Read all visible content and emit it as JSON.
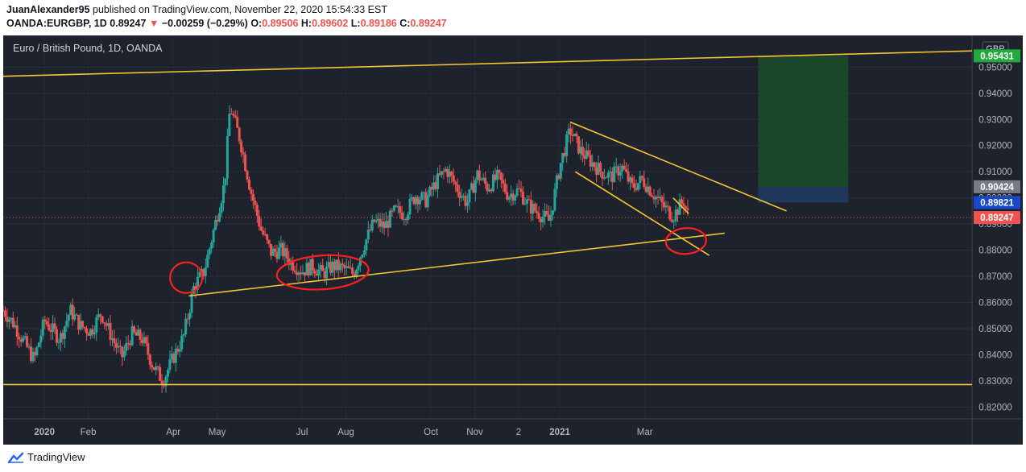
{
  "header": {
    "author": "JuanAlexander95",
    "published_text": "published on TradingView.com, November 22, 2020 15:54:33 EST",
    "symbol": "OANDA:EURGBP, 1D",
    "last_price": "0.89247",
    "change_arrow": "▼",
    "change": "−0.00259 (−0.29%)",
    "o_label": "O:",
    "o_value": "0.89506",
    "h_label": "H:",
    "h_value": "0.89602",
    "l_label": "L:",
    "l_value": "0.89186",
    "c_label": "C:",
    "c_value": "0.89247"
  },
  "footer": {
    "brand": "TradingView"
  },
  "colors": {
    "background": "#1e222d",
    "up": "#26a69a",
    "down": "#ef5350",
    "trendline": "#f7c531",
    "annotation": "#ff1f1f",
    "target_zone": "#1b4a2a",
    "stop_zone": "#1e3a5f"
  },
  "chart_data": {
    "type": "candlestick",
    "title": "Euro / British Pound, 1D, OANDA",
    "currency": "GBP",
    "ylim": [
      0.8155,
      0.9615
    ],
    "y_ticks": [
      "0.82000",
      "0.83000",
      "0.84000",
      "0.85000",
      "0.86000",
      "0.87000",
      "0.88000",
      "0.89000",
      "0.90000",
      "0.91000",
      "0.92000",
      "0.93000",
      "0.94000",
      "0.95000"
    ],
    "x_tick_labels": [
      "2020",
      "Feb",
      "Apr",
      "May",
      "Jul",
      "Aug",
      "Oct",
      "Nov",
      "2",
      "2021",
      "Mar"
    ],
    "price_path": [
      [
        2019.92,
        0.857
      ],
      [
        2019.94,
        0.852
      ],
      [
        2019.96,
        0.845
      ],
      [
        2019.98,
        0.838
      ],
      [
        2020.0,
        0.853
      ],
      [
        2020.03,
        0.846
      ],
      [
        2020.05,
        0.857
      ],
      [
        2020.07,
        0.851
      ],
      [
        2020.09,
        0.849
      ],
      [
        2020.11,
        0.856
      ],
      [
        2020.13,
        0.847
      ],
      [
        2020.15,
        0.839
      ],
      [
        2020.17,
        0.848
      ],
      [
        2020.19,
        0.846
      ],
      [
        2020.21,
        0.836
      ],
      [
        2020.23,
        0.83
      ],
      [
        2020.25,
        0.839
      ],
      [
        2020.27,
        0.847
      ],
      [
        2020.29,
        0.866
      ],
      [
        2020.31,
        0.872
      ],
      [
        2020.33,
        0.889
      ],
      [
        2020.35,
        0.906
      ],
      [
        2020.36,
        0.935
      ],
      [
        2020.38,
        0.922
      ],
      [
        2020.4,
        0.903
      ],
      [
        2020.42,
        0.888
      ],
      [
        2020.44,
        0.879
      ],
      [
        2020.46,
        0.88
      ],
      [
        2020.48,
        0.875
      ],
      [
        2020.5,
        0.872
      ],
      [
        2020.52,
        0.874
      ],
      [
        2020.54,
        0.871
      ],
      [
        2020.56,
        0.874
      ],
      [
        2020.58,
        0.873
      ],
      [
        2020.6,
        0.871
      ],
      [
        2020.62,
        0.882
      ],
      [
        2020.64,
        0.891
      ],
      [
        2020.66,
        0.889
      ],
      [
        2020.68,
        0.895
      ],
      [
        2020.7,
        0.894
      ],
      [
        2020.72,
        0.901
      ],
      [
        2020.74,
        0.899
      ],
      [
        2020.76,
        0.906
      ],
      [
        2020.78,
        0.911
      ],
      [
        2020.8,
        0.904
      ],
      [
        2020.82,
        0.898
      ],
      [
        2020.84,
        0.909
      ],
      [
        2020.86,
        0.904
      ],
      [
        2020.88,
        0.908
      ],
      [
        2020.9,
        0.901
      ],
      [
        2020.92,
        0.903
      ],
      [
        2020.94,
        0.897
      ],
      [
        2020.96,
        0.894
      ],
      [
        2020.98,
        0.891
      ],
      [
        2021.0,
        0.912
      ],
      [
        2021.02,
        0.926
      ],
      [
        2021.04,
        0.918
      ],
      [
        2021.06,
        0.914
      ],
      [
        2021.08,
        0.91
      ],
      [
        2021.1,
        0.908
      ],
      [
        2021.12,
        0.912
      ],
      [
        2021.14,
        0.904
      ],
      [
        2021.16,
        0.907
      ],
      [
        2021.18,
        0.902
      ],
      [
        2021.2,
        0.897
      ],
      [
        2021.22,
        0.893
      ],
      [
        2021.24,
        0.899
      ],
      [
        2021.25,
        0.8925
      ]
    ],
    "trendlines": [
      {
        "name": "upper-channel",
        "x": [
          2019.92,
          2021.8
        ],
        "y": [
          0.9465,
          0.9562
        ]
      },
      {
        "name": "rising-support",
        "x": [
          2020.28,
          2021.32
        ],
        "y": [
          0.8625,
          0.8865
        ]
      },
      {
        "name": "base-support",
        "x": [
          2019.92,
          2021.8
        ],
        "y": [
          0.8286,
          0.8286
        ]
      },
      {
        "name": "falling-wedge-top",
        "x": [
          2021.02,
          2021.44
        ],
        "y": [
          0.929,
          0.895
        ]
      },
      {
        "name": "falling-wedge-bottom",
        "x": [
          2021.03,
          2021.29
        ],
        "y": [
          0.91,
          0.878
        ]
      },
      {
        "name": "flag-top",
        "x": [
          2021.22,
          2021.25
        ],
        "y": [
          0.9,
          0.894
        ]
      }
    ],
    "position": {
      "entry": 0.90424,
      "target": 0.95431,
      "stop": 0.89821
    },
    "price_labels": [
      {
        "value": "0.95431",
        "price": 0.95431,
        "color": "#22ab3b"
      },
      {
        "value": "0.90424",
        "price": 0.90424,
        "color": "#787b86"
      },
      {
        "value": "0.89821",
        "price": 0.89821,
        "color": "#1848cc"
      },
      {
        "value": "0.89247",
        "price": 0.89247,
        "color": "#ef5350"
      }
    ],
    "highlight_circles": [
      {
        "x": 2020.275,
        "y": 0.8695
      },
      {
        "x": 2020.54,
        "y": 0.8715
      },
      {
        "x": 2021.245,
        "y": 0.8835
      }
    ]
  }
}
